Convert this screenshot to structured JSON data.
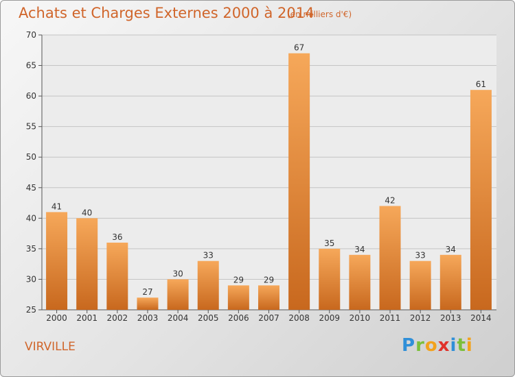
{
  "title": "Achats et Charges Externes 2000 à 2014",
  "subtitle": "(en milliers d'€)",
  "place": "VIRVILLE",
  "logo": "Proxiti",
  "colors": {
    "bar_light": "#f6a85a",
    "bar_dark": "#c8681e",
    "accent": "#d0652a"
  },
  "chart_data": {
    "type": "bar",
    "categories": [
      "2000",
      "2001",
      "2002",
      "2003",
      "2004",
      "2005",
      "2006",
      "2007",
      "2008",
      "2009",
      "2010",
      "2011",
      "2012",
      "2013",
      "2014"
    ],
    "values": [
      41,
      40,
      36,
      27,
      30,
      33,
      29,
      29,
      67,
      35,
      34,
      42,
      33,
      34,
      61
    ],
    "ylim": [
      25,
      70
    ],
    "yticks": [
      25,
      30,
      35,
      40,
      45,
      50,
      55,
      60,
      65,
      70
    ],
    "grid": true,
    "xlabel": "",
    "ylabel": ""
  }
}
